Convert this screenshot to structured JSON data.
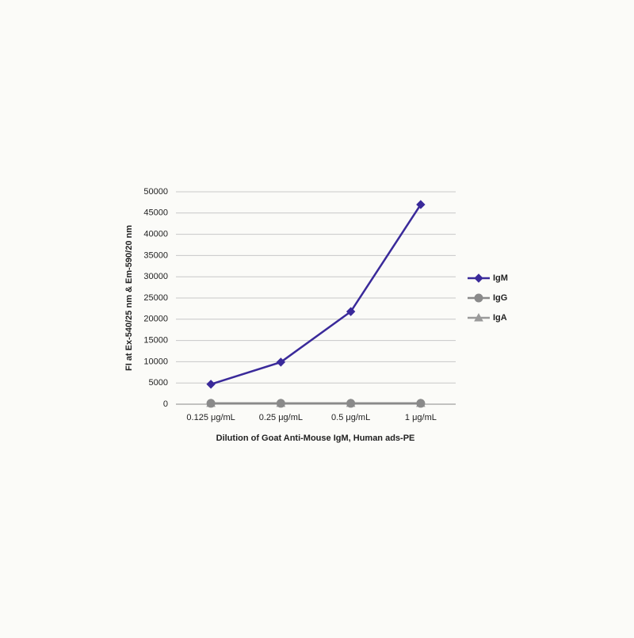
{
  "chart_data": {
    "type": "line",
    "x_label": "Dilution of Goat Anti-Mouse IgM, Human ads-PE",
    "y_label": "FI at Ex-540/25 nm & Em-590/20 nm",
    "categories": [
      "0.125 μg/mL",
      "0.25 μg/mL",
      "0.5 μg/mL",
      "1 μg/mL"
    ],
    "series": [
      {
        "name": "IgM",
        "color": "#3a2a9a",
        "marker": "diamond",
        "values": [
          4700,
          9900,
          21800,
          47000
        ]
      },
      {
        "name": "IgG",
        "color": "#8a8a8a",
        "marker": "circle",
        "values": [
          200,
          200,
          200,
          200
        ]
      },
      {
        "name": "IgA",
        "color": "#9a9a9a",
        "marker": "triangle",
        "values": [
          200,
          200,
          200,
          200
        ]
      }
    ],
    "ylim": [
      0,
      50000
    ],
    "yticks": [
      0,
      5000,
      10000,
      15000,
      20000,
      25000,
      30000,
      35000,
      40000,
      45000,
      50000
    ],
    "grid": true,
    "legend": "right"
  }
}
